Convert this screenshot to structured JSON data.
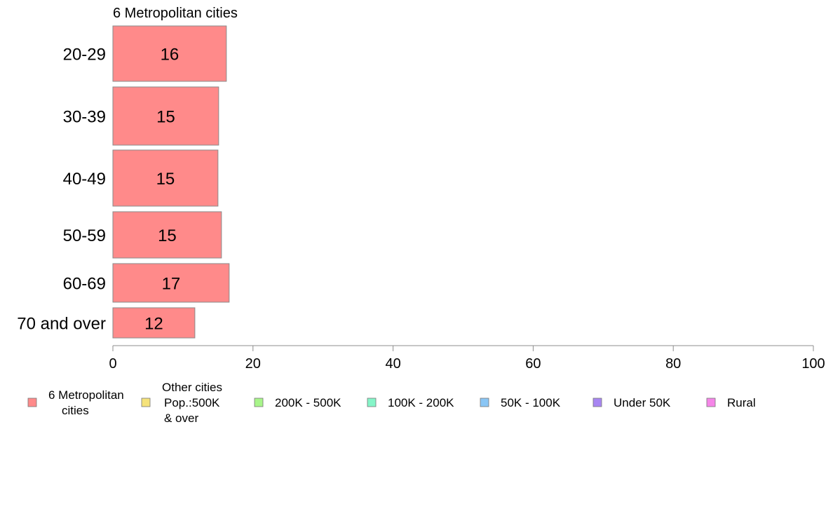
{
  "chart_data": {
    "type": "bar",
    "orientation": "horizontal",
    "title": "6 Metropolitan cities",
    "categories": [
      "20-29",
      "30-39",
      "40-49",
      "50-59",
      "60-69",
      "70 and over"
    ],
    "series": [
      {
        "name": "6 Metropolitan cities",
        "values": [
          16.2,
          15.1,
          15.0,
          15.5,
          16.6,
          11.7
        ],
        "labels": [
          "16",
          "15",
          "15",
          "15",
          "17",
          "12"
        ],
        "color": "#ff8a8a"
      }
    ],
    "xlim": [
      0,
      100
    ],
    "xticks": [
      "0",
      "20",
      "40",
      "60",
      "80",
      "100"
    ],
    "grid": false,
    "legend_position": "bottom",
    "legend": [
      {
        "label_lines": [
          "6 Metropolitan",
          "cities"
        ],
        "color": "#ff8a8a"
      },
      {
        "label_lines": [
          "Other cities",
          "Pop.:500K",
          "& over"
        ],
        "color": "#f5e27a"
      },
      {
        "label_lines": [
          "200K - 500K"
        ],
        "color": "#a8f58a"
      },
      {
        "label_lines": [
          "100K - 200K"
        ],
        "color": "#85f5c8"
      },
      {
        "label_lines": [
          "50K - 100K"
        ],
        "color": "#8ac6f5"
      },
      {
        "label_lines": [
          "Under 50K"
        ],
        "color": "#a886f2"
      },
      {
        "label_lines": [
          "Rural"
        ],
        "color": "#f586e8"
      }
    ]
  }
}
